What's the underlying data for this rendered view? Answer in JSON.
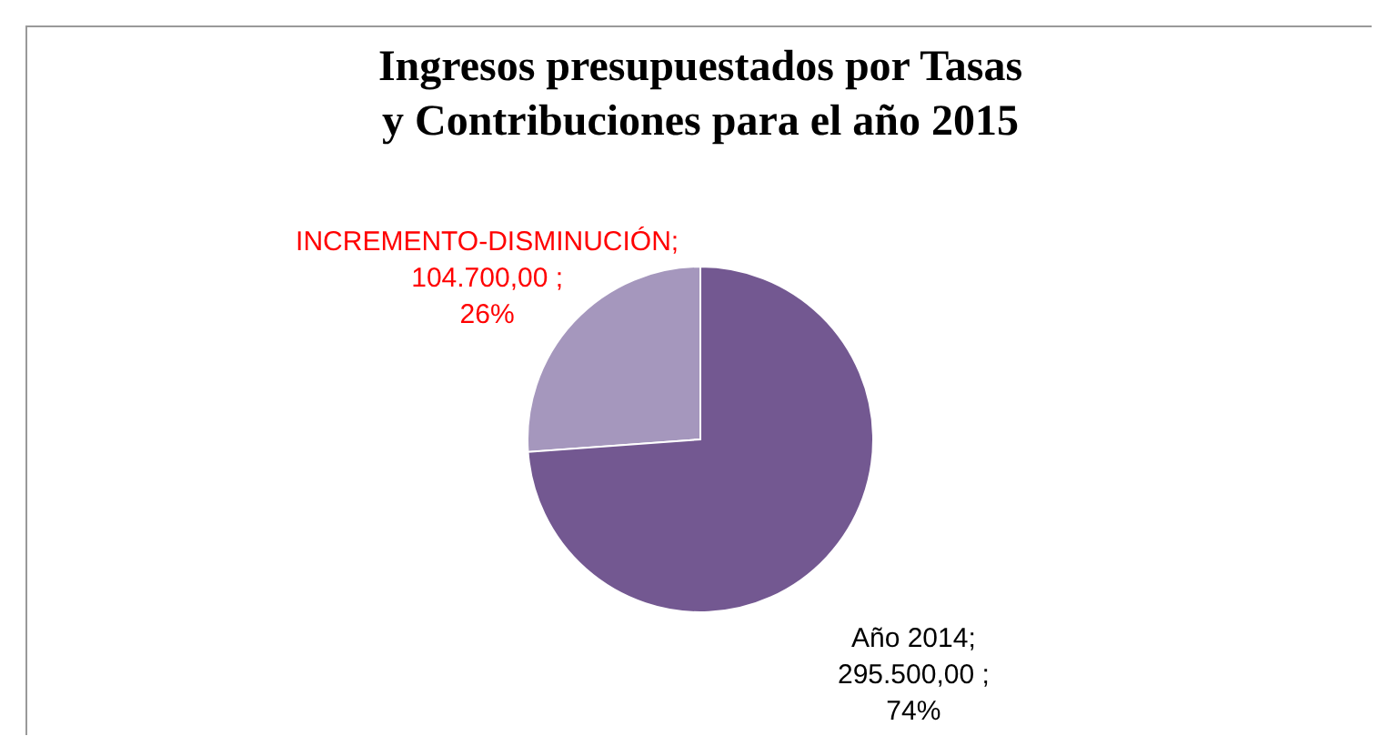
{
  "chart_data": {
    "type": "pie",
    "title": "Ingresos presupuestados por Tasas y Contribuciones para el año 2015",
    "categories": [
      "INCREMENTO-DISMINUCIÓN",
      "Año 2014"
    ],
    "values": [
      104700,
      295500
    ],
    "colors": [
      "#a597bd",
      "#735891"
    ],
    "value_labels": [
      "; 104.700,00 ; 26%",
      "; 295.500,00 ; 74%"
    ],
    "legend": false
  }
}
